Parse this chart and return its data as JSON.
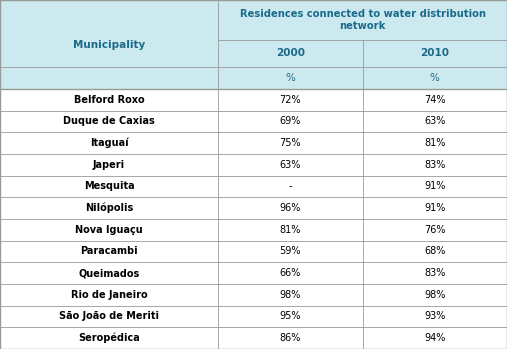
{
  "header_main": "Residences connected to water distribution\nnetwork",
  "header_col1": "Municipality",
  "header_col2": "2000",
  "header_col3": "2010",
  "subheader_col2": "%",
  "subheader_col3": "%",
  "rows": [
    [
      "Belford Roxo",
      "72%",
      "74%"
    ],
    [
      "Duque de Caxias",
      "69%",
      "63%"
    ],
    [
      "Itaguaí",
      "75%",
      "81%"
    ],
    [
      "Japeri",
      "63%",
      "83%"
    ],
    [
      "Mesquita",
      "-",
      "91%"
    ],
    [
      "Nilópolis",
      "96%",
      "91%"
    ],
    [
      "Nova Iguaçu",
      "81%",
      "76%"
    ],
    [
      "Paracambi",
      "59%",
      "68%"
    ],
    [
      "Queimados",
      "66%",
      "83%"
    ],
    [
      "Rio de Janeiro",
      "98%",
      "98%"
    ],
    [
      "São João de Meriti",
      "95%",
      "93%"
    ],
    [
      "Seropédica",
      "86%",
      "94%"
    ]
  ],
  "header_bg": "#cce9f0",
  "row_bg": "#ffffff",
  "border_color": "#999999",
  "header_text_color": "#1a6b8a",
  "row_text_color": "#000000",
  "fig_width": 5.07,
  "fig_height": 3.49,
  "dpi": 100
}
